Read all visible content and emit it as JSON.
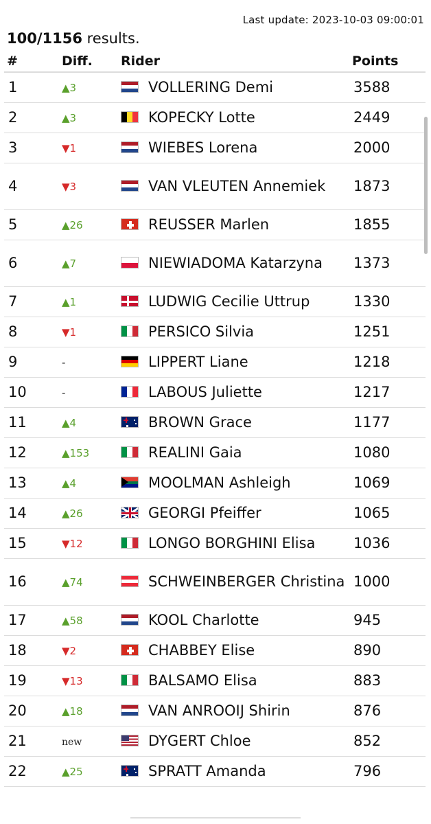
{
  "header": {
    "last_update": "Last update: 2023-10-03 09:00:01",
    "results_count": "100/1156",
    "results_label": " results."
  },
  "table": {
    "columns": [
      "#",
      "Diff.",
      "Rider",
      "Points"
    ],
    "rows": [
      {
        "rank": "1",
        "dir": "up",
        "diff": "3",
        "flag": "nl",
        "rider": "VOLLERING Demi",
        "points": "3588"
      },
      {
        "rank": "2",
        "dir": "up",
        "diff": "3",
        "flag": "be",
        "rider": "KOPECKY Lotte",
        "points": "2449"
      },
      {
        "rank": "3",
        "dir": "down",
        "diff": "1",
        "flag": "nl",
        "rider": "WIEBES Lorena",
        "points": "2000"
      },
      {
        "rank": "4",
        "dir": "down",
        "diff": "3",
        "flag": "nl",
        "rider": "VAN VLEUTEN Annemiek",
        "points": "1873"
      },
      {
        "rank": "5",
        "dir": "up",
        "diff": "26",
        "flag": "ch",
        "rider": "REUSSER Marlen",
        "points": "1855"
      },
      {
        "rank": "6",
        "dir": "up",
        "diff": "7",
        "flag": "pl",
        "rider": "NIEWIADOMA Katarzyna",
        "points": "1373"
      },
      {
        "rank": "7",
        "dir": "up",
        "diff": "1",
        "flag": "dk",
        "rider": "LUDWIG Cecilie Uttrup",
        "points": "1330"
      },
      {
        "rank": "8",
        "dir": "down",
        "diff": "1",
        "flag": "it",
        "rider": "PERSICO Silvia",
        "points": "1251"
      },
      {
        "rank": "9",
        "dir": "same",
        "diff": "-",
        "flag": "de",
        "rider": "LIPPERT Liane",
        "points": "1218"
      },
      {
        "rank": "10",
        "dir": "same",
        "diff": "-",
        "flag": "fr",
        "rider": "LABOUS Juliette",
        "points": "1217"
      },
      {
        "rank": "11",
        "dir": "up",
        "diff": "4",
        "flag": "au",
        "rider": "BROWN Grace",
        "points": "1177"
      },
      {
        "rank": "12",
        "dir": "up",
        "diff": "153",
        "flag": "it",
        "rider": "REALINI Gaia",
        "points": "1080"
      },
      {
        "rank": "13",
        "dir": "up",
        "diff": "4",
        "flag": "za",
        "rider": "MOOLMAN Ashleigh",
        "points": "1069"
      },
      {
        "rank": "14",
        "dir": "up",
        "diff": "26",
        "flag": "gb",
        "rider": "GEORGI Pfeiffer",
        "points": "1065"
      },
      {
        "rank": "15",
        "dir": "down",
        "diff": "12",
        "flag": "it",
        "rider": "LONGO BORGHINI Elisa",
        "points": "1036"
      },
      {
        "rank": "16",
        "dir": "up",
        "diff": "74",
        "flag": "at",
        "rider": "SCHWEINBERGER Christina",
        "points": "1000"
      },
      {
        "rank": "17",
        "dir": "up",
        "diff": "58",
        "flag": "nl",
        "rider": "KOOL Charlotte",
        "points": "945"
      },
      {
        "rank": "18",
        "dir": "down",
        "diff": "2",
        "flag": "ch",
        "rider": "CHABBEY Elise",
        "points": "890"
      },
      {
        "rank": "19",
        "dir": "down",
        "diff": "13",
        "flag": "it",
        "rider": "BALSAMO Elisa",
        "points": "883"
      },
      {
        "rank": "20",
        "dir": "up",
        "diff": "18",
        "flag": "nl",
        "rider": "VAN ANROOIJ Shirin",
        "points": "876"
      },
      {
        "rank": "21",
        "dir": "new",
        "diff": "new",
        "flag": "us",
        "rider": "DYGERT Chloe",
        "points": "852"
      },
      {
        "rank": "22",
        "dir": "up",
        "diff": "25",
        "flag": "au",
        "rider": "SPRATT Amanda",
        "points": "796"
      }
    ]
  }
}
